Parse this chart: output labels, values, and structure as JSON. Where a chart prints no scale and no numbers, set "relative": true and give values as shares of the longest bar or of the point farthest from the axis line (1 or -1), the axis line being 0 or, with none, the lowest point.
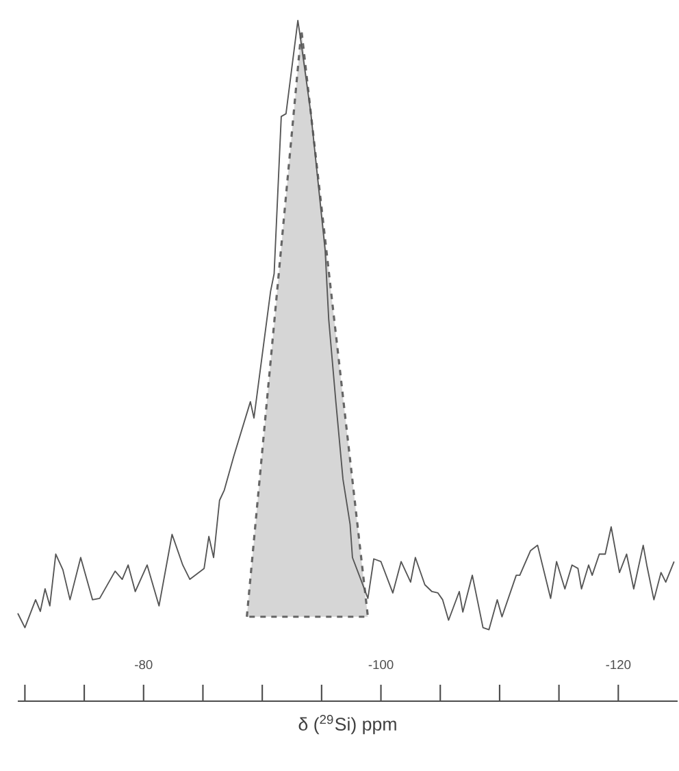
{
  "chart_data": {
    "type": "line",
    "relative": true,
    "xlabel": "δ ($^{29}$Si) ppm",
    "xlim": [
      -69.4,
      -125
    ],
    "xticks": [
      {
        "value": -70,
        "label": null
      },
      {
        "value": -75,
        "label": null
      },
      -80,
      {
        "value": -85,
        "label": null
      },
      {
        "value": -90,
        "label": null
      },
      {
        "value": -95,
        "label": null
      },
      -100,
      {
        "value": -105,
        "label": null
      },
      {
        "value": -110,
        "label": null
      },
      {
        "value": -115,
        "label": null
      },
      -120
    ],
    "series": [
      {
        "color": "#555555",
        "line_style": "solid",
        "x": [
          -69.4,
          -70.0,
          -70.9,
          -71.3,
          -71.7,
          -72.1,
          -72.6,
          -73.2,
          -73.8,
          -74.7,
          -75.7,
          -76.3,
          -77.6,
          -78.2,
          -78.7,
          -79.3,
          -80.3,
          -81.3,
          -82.4,
          -83.3,
          -83.9,
          -85.1,
          -85.5,
          -85.9,
          -86.4,
          -86.8,
          -87.6,
          -89.0,
          -89.3,
          -90.7,
          -91.0,
          -91.6,
          -92.0,
          -93.0,
          -93.3,
          -94.1,
          -94.7,
          -95.3,
          -95.6,
          -96.2,
          -96.8,
          -97.4,
          -97.6,
          -98.3,
          -98.9,
          -99.4,
          -100.0,
          -101.0,
          -101.7,
          -102.5,
          -102.9,
          -103.7,
          -104.3,
          -104.8,
          -105.2,
          -105.7,
          -106.6,
          -106.9,
          -107.7,
          -108.6,
          -109.1,
          -109.8,
          -110.2,
          -111.4,
          -111.7,
          -112.6,
          -113.2,
          -114.3,
          -114.8,
          -115.5,
          -116.1,
          -116.6,
          -116.9,
          -117.5,
          -117.8,
          -118.4,
          -118.9,
          -119.4,
          -120.1,
          -120.7,
          -121.3,
          -122.1,
          -122.4,
          -123.0,
          -123.6,
          -124.0,
          -124.7
        ],
        "values": [
          0.129,
          0.108,
          0.149,
          0.132,
          0.165,
          0.14,
          0.216,
          0.193,
          0.149,
          0.211,
          0.149,
          0.151,
          0.191,
          0.179,
          0.2,
          0.161,
          0.2,
          0.14,
          0.245,
          0.2,
          0.179,
          0.195,
          0.242,
          0.211,
          0.295,
          0.31,
          0.36,
          0.44,
          0.416,
          0.602,
          0.628,
          0.859,
          0.863,
          1.0,
          0.964,
          0.863,
          0.763,
          0.662,
          0.561,
          0.44,
          0.326,
          0.26,
          0.211,
          0.179,
          0.151,
          0.209,
          0.205,
          0.159,
          0.205,
          0.175,
          0.211,
          0.171,
          0.161,
          0.159,
          0.149,
          0.119,
          0.161,
          0.131,
          0.185,
          0.108,
          0.105,
          0.149,
          0.124,
          0.185,
          0.185,
          0.221,
          0.229,
          0.151,
          0.205,
          0.165,
          0.2,
          0.195,
          0.165,
          0.2,
          0.185,
          0.216,
          0.216,
          0.256,
          0.189,
          0.216,
          0.165,
          0.229,
          0.2,
          0.149,
          0.189,
          0.175,
          0.205
        ]
      },
      {
        "type": "area",
        "color": "#d6d6d6",
        "line_style": "dashed",
        "x": [
          -88.7,
          -93.3,
          -98.9
        ],
        "values": [
          0.124,
          0.986,
          0.124
        ]
      }
    ]
  }
}
